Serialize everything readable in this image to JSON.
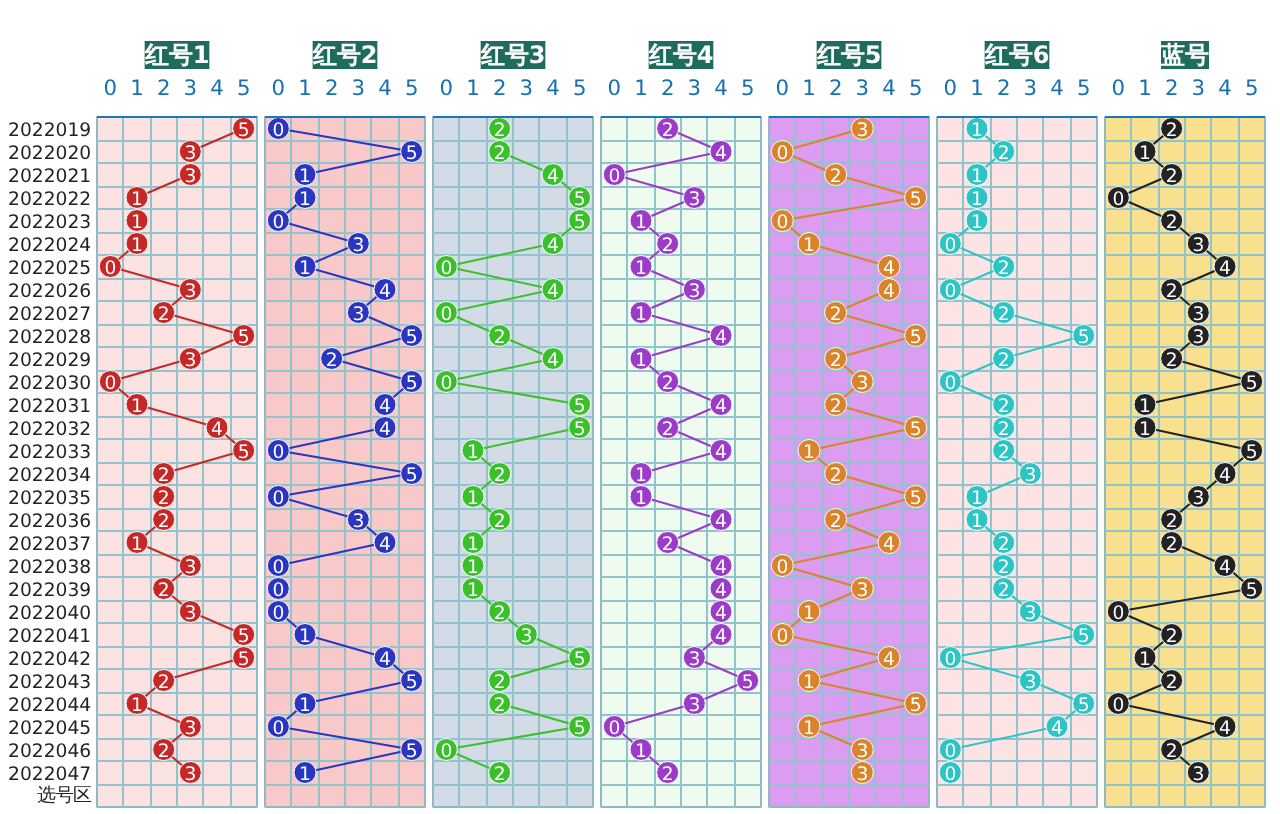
{
  "chart_data": [
    {
      "type": "line",
      "title": "红号1",
      "orientation": "horizontal",
      "marker": "circle",
      "data_labels": true,
      "grid": true,
      "xlim": [
        -0.5,
        5.5
      ],
      "xticks": [
        0,
        1,
        2,
        3,
        4,
        5
      ],
      "categories": [
        "2022019",
        "2022020",
        "2022021",
        "2022022",
        "2022023",
        "2022024",
        "2022025",
        "2022026",
        "2022027",
        "2022028",
        "2022029",
        "2022030",
        "2022031",
        "2022032",
        "2022033",
        "2022034",
        "2022035",
        "2022036",
        "2022037",
        "2022038",
        "2022039",
        "2022040",
        "2022041",
        "2022042",
        "2022043",
        "2022044",
        "2022045",
        "2022046",
        "2022047",
        "选号区"
      ],
      "series": [
        {
          "color": "#c62828",
          "values": [
            5,
            3,
            3,
            1,
            1,
            1,
            0,
            3,
            2,
            5,
            3,
            0,
            1,
            4,
            5,
            2,
            2,
            2,
            1,
            3,
            2,
            3,
            5,
            5,
            2,
            1,
            3,
            2,
            3,
            null
          ]
        }
      ]
    },
    {
      "type": "line",
      "title": "红号2",
      "orientation": "horizontal",
      "marker": "circle",
      "data_labels": true,
      "grid": true,
      "tick_labels": "x",
      "xlim": [
        -0.5,
        5.5
      ],
      "xticks": [
        0,
        1,
        2,
        3,
        4,
        5
      ],
      "categories": [
        null,
        null,
        null,
        null,
        null,
        null,
        null,
        null,
        null,
        null,
        null,
        null,
        null,
        null,
        null,
        null,
        null,
        null,
        null,
        null,
        null,
        null,
        null,
        null,
        null,
        null,
        null,
        null,
        null,
        null
      ],
      "series": [
        {
          "color": "#2a35c0",
          "values": [
            0,
            5,
            1,
            1,
            0,
            3,
            1,
            4,
            3,
            5,
            2,
            5,
            4,
            4,
            0,
            5,
            0,
            3,
            4,
            0,
            0,
            0,
            1,
            4,
            5,
            1,
            0,
            5,
            1,
            null
          ]
        }
      ]
    },
    {
      "type": "line",
      "title": "红号3",
      "orientation": "horizontal",
      "marker": "circle",
      "data_labels": true,
      "grid": true,
      "tick_labels": "x",
      "xlim": [
        -0.5,
        5.5
      ],
      "xticks": [
        0,
        1,
        2,
        3,
        4,
        5
      ],
      "categories": [
        null,
        null,
        null,
        null,
        null,
        null,
        null,
        null,
        null,
        null,
        null,
        null,
        null,
        null,
        null,
        null,
        null,
        null,
        null,
        null,
        null,
        null,
        null,
        null,
        null,
        null,
        null,
        null,
        null,
        null
      ],
      "series": [
        {
          "color": "#3cbf2c",
          "values": [
            2,
            2,
            4,
            5,
            5,
            4,
            0,
            4,
            0,
            2,
            4,
            0,
            5,
            5,
            1,
            2,
            1,
            2,
            1,
            1,
            1,
            2,
            3,
            5,
            2,
            2,
            5,
            0,
            2,
            null
          ]
        }
      ]
    },
    {
      "type": "line",
      "title": "红号4",
      "orientation": "horizontal",
      "marker": "circle",
      "data_labels": true,
      "grid": true,
      "tick_labels": "x",
      "xlim": [
        -0.5,
        5.5
      ],
      "xticks": [
        0,
        1,
        2,
        3,
        4,
        5
      ],
      "categories": [
        null,
        null,
        null,
        null,
        null,
        null,
        null,
        null,
        null,
        null,
        null,
        null,
        null,
        null,
        null,
        null,
        null,
        null,
        null,
        null,
        null,
        null,
        null,
        null,
        null,
        null,
        null,
        null,
        null,
        null
      ],
      "series": [
        {
          "color": "#9a3cc8",
          "values": [
            2,
            4,
            0,
            3,
            1,
            2,
            1,
            3,
            1,
            4,
            1,
            2,
            4,
            2,
            4,
            1,
            1,
            4,
            2,
            4,
            4,
            4,
            4,
            3,
            5,
            3,
            0,
            1,
            2,
            null
          ]
        }
      ]
    },
    {
      "type": "line",
      "title": "红号5",
      "orientation": "horizontal",
      "marker": "circle",
      "data_labels": true,
      "grid": true,
      "tick_labels": "x",
      "xlim": [
        -0.5,
        5.5
      ],
      "xticks": [
        0,
        1,
        2,
        3,
        4,
        5
      ],
      "categories": [
        null,
        null,
        null,
        null,
        null,
        null,
        null,
        null,
        null,
        null,
        null,
        null,
        null,
        null,
        null,
        null,
        null,
        null,
        null,
        null,
        null,
        null,
        null,
        null,
        null,
        null,
        null,
        null,
        null,
        null
      ],
      "series": [
        {
          "color": "#d9832a",
          "values": [
            3,
            0,
            2,
            5,
            0,
            1,
            4,
            4,
            2,
            5,
            2,
            3,
            2,
            5,
            1,
            2,
            5,
            2,
            4,
            0,
            3,
            1,
            0,
            4,
            1,
            5,
            1,
            3,
            3,
            null
          ]
        }
      ]
    },
    {
      "type": "line",
      "title": "红号6",
      "orientation": "horizontal",
      "marker": "circle",
      "data_labels": true,
      "grid": true,
      "tick_labels": "x",
      "xlim": [
        -0.5,
        5.5
      ],
      "xticks": [
        0,
        1,
        2,
        3,
        4,
        5
      ],
      "categories": [
        null,
        null,
        null,
        null,
        null,
        null,
        null,
        null,
        null,
        null,
        null,
        null,
        null,
        null,
        null,
        null,
        null,
        null,
        null,
        null,
        null,
        null,
        null,
        null,
        null,
        null,
        null,
        null,
        null,
        null
      ],
      "series": [
        {
          "color": "#2ec4c4",
          "values": [
            1,
            2,
            1,
            1,
            1,
            0,
            2,
            0,
            2,
            5,
            2,
            0,
            2,
            2,
            2,
            3,
            1,
            1,
            2,
            2,
            2,
            3,
            5,
            0,
            3,
            5,
            4,
            0,
            0,
            null
          ]
        }
      ]
    },
    {
      "type": "line",
      "title": "蓝号",
      "orientation": "horizontal",
      "marker": "circle",
      "data_labels": true,
      "grid": true,
      "tick_labels": "x",
      "xlim": [
        -0.5,
        5.5
      ],
      "xticks": [
        0,
        1,
        2,
        3,
        4,
        5
      ],
      "categories": [
        null,
        null,
        null,
        null,
        null,
        null,
        null,
        null,
        null,
        null,
        null,
        null,
        null,
        null,
        null,
        null,
        null,
        null,
        null,
        null,
        null,
        null,
        null,
        null,
        null,
        null,
        null,
        null,
        null,
        null
      ],
      "series": [
        {
          "color": "#222222",
          "values": [
            2,
            1,
            2,
            0,
            2,
            3,
            4,
            2,
            3,
            3,
            2,
            5,
            1,
            1,
            5,
            4,
            3,
            2,
            2,
            4,
            5,
            0,
            2,
            1,
            2,
            0,
            4,
            2,
            3,
            null
          ]
        }
      ]
    }
  ]
}
